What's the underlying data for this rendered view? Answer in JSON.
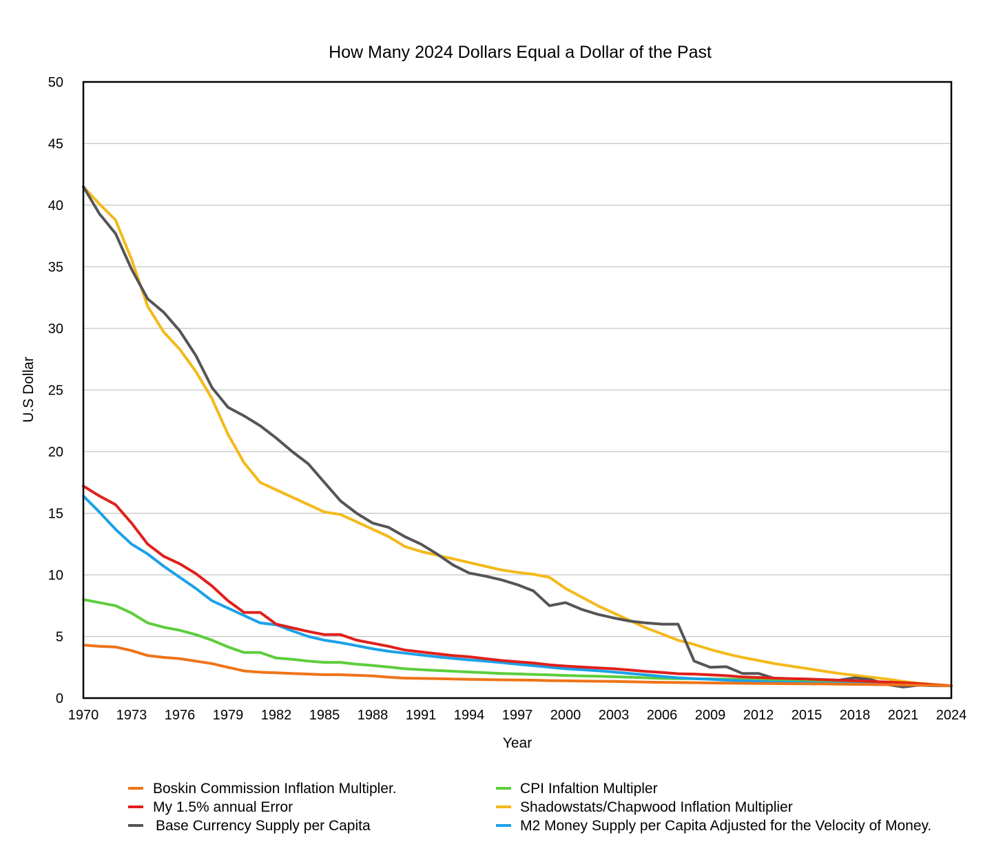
{
  "chart_data": {
    "type": "line",
    "title": "How Many 2024 Dollars Equal a Dollar of the Past",
    "xlabel": "Year",
    "ylabel": "U.S Dollar",
    "xlim": [
      1970,
      2024
    ],
    "ylim": [
      0,
      50
    ],
    "y_ticks": [
      0,
      5,
      10,
      15,
      20,
      25,
      30,
      35,
      40,
      45,
      50
    ],
    "x_tick_labels": [
      "1970",
      "1973",
      "1976",
      "1979",
      "1982",
      "1985",
      "1988",
      "1991",
      "1994",
      "1997",
      "2000",
      "2003",
      "2006",
      "2009",
      "2012",
      "2015",
      "2018",
      "2021",
      "2024"
    ],
    "grid": "horizontal",
    "legend_position": "bottom",
    "x": [
      1970,
      1971,
      1972,
      1973,
      1974,
      1975,
      1976,
      1977,
      1978,
      1979,
      1980,
      1981,
      1982,
      1983,
      1984,
      1985,
      1986,
      1987,
      1988,
      1989,
      1990,
      1991,
      1992,
      1993,
      1994,
      1995,
      1996,
      1997,
      1998,
      1999,
      2000,
      2001,
      2002,
      2003,
      2004,
      2005,
      2006,
      2007,
      2008,
      2009,
      2010,
      2011,
      2012,
      2013,
      2014,
      2015,
      2016,
      2017,
      2018,
      2019,
      2020,
      2021,
      2022,
      2023,
      2024
    ],
    "series": [
      {
        "name": "Boskin Commission Inflation Multipler.",
        "color": "#ee7418",
        "values": [
          4.3,
          4.2,
          4.15,
          3.85,
          3.45,
          3.3,
          3.2,
          3.0,
          2.8,
          2.5,
          2.2,
          2.1,
          2.05,
          2.0,
          1.95,
          1.9,
          1.9,
          1.85,
          1.8,
          1.7,
          1.62,
          1.6,
          1.58,
          1.55,
          1.52,
          1.5,
          1.48,
          1.47,
          1.45,
          1.42,
          1.4,
          1.38,
          1.37,
          1.35,
          1.33,
          1.3,
          1.28,
          1.26,
          1.25,
          1.23,
          1.22,
          1.2,
          1.19,
          1.18,
          1.17,
          1.16,
          1.15,
          1.13,
          1.12,
          1.1,
          1.09,
          1.07,
          1.05,
          1.03,
          1.0
        ]
      },
      {
        "name": "My 1.5% annual Error",
        "color": "#e0201b",
        "values": [
          17.2,
          16.4,
          15.7,
          14.2,
          12.5,
          11.5,
          10.9,
          10.1,
          9.1,
          7.9,
          6.95,
          6.95,
          6.0,
          5.7,
          5.4,
          5.15,
          5.15,
          4.7,
          4.45,
          4.2,
          3.9,
          3.75,
          3.6,
          3.45,
          3.35,
          3.2,
          3.05,
          2.95,
          2.85,
          2.7,
          2.6,
          2.52,
          2.45,
          2.38,
          2.28,
          2.16,
          2.08,
          1.98,
          1.95,
          1.88,
          1.82,
          1.72,
          1.67,
          1.62,
          1.58,
          1.55,
          1.5,
          1.45,
          1.4,
          1.35,
          1.3,
          1.24,
          1.17,
          1.08,
          1.0
        ]
      },
      {
        "name": "Base Currency Supply per Capita",
        "color": "#555555",
        "values": [
          41.5,
          39.3,
          37.7,
          34.8,
          32.4,
          31.3,
          29.8,
          27.8,
          25.2,
          23.6,
          22.9,
          22.1,
          21.1,
          20.0,
          19.0,
          17.5,
          16.0,
          15.0,
          14.2,
          13.85,
          13.1,
          12.5,
          11.7,
          10.8,
          10.15,
          9.9,
          9.6,
          9.2,
          8.7,
          7.5,
          7.75,
          7.2,
          6.8,
          6.5,
          6.25,
          6.1,
          6.0,
          6.0,
          3.0,
          2.5,
          2.55,
          2.0,
          2.0,
          1.6,
          1.55,
          1.5,
          1.45,
          1.45,
          1.65,
          1.5,
          1.1,
          0.9,
          1.05,
          1.0,
          1.0
        ]
      },
      {
        "name": "CPI Infaltion Multipler",
        "color": "#5dcd3c",
        "values": [
          8.0,
          7.75,
          7.5,
          6.9,
          6.1,
          5.75,
          5.5,
          5.15,
          4.7,
          4.15,
          3.7,
          3.7,
          3.25,
          3.15,
          3.0,
          2.9,
          2.9,
          2.75,
          2.65,
          2.52,
          2.38,
          2.3,
          2.24,
          2.18,
          2.12,
          2.06,
          2.0,
          1.96,
          1.92,
          1.88,
          1.84,
          1.8,
          1.77,
          1.74,
          1.7,
          1.65,
          1.6,
          1.58,
          1.57,
          1.56,
          1.54,
          1.5,
          1.45,
          1.42,
          1.4,
          1.38,
          1.37,
          1.34,
          1.3,
          1.26,
          1.25,
          1.18,
          1.07,
          1.03,
          1.0
        ]
      },
      {
        "name": "Shadowstats/Chapwood Inflation Multiplier",
        "color": "#f4b91a",
        "values": [
          41.5,
          40.1,
          38.8,
          35.6,
          31.8,
          29.7,
          28.3,
          26.5,
          24.3,
          21.4,
          19.1,
          17.5,
          16.9,
          16.3,
          15.7,
          15.1,
          14.9,
          14.3,
          13.7,
          13.1,
          12.3,
          11.9,
          11.6,
          11.3,
          11.0,
          10.7,
          10.4,
          10.2,
          10.05,
          9.8,
          8.9,
          8.2,
          7.5,
          6.9,
          6.3,
          5.7,
          5.2,
          4.7,
          4.35,
          3.95,
          3.6,
          3.3,
          3.05,
          2.8,
          2.6,
          2.4,
          2.2,
          2.0,
          1.85,
          1.7,
          1.55,
          1.35,
          1.2,
          1.1,
          1.0
        ]
      },
      {
        "name": "M2 Money Supply per Capita Adjusted for the Velocity of Money.",
        "color": "#1ba1e8",
        "values": [
          16.4,
          15.1,
          13.7,
          12.5,
          11.7,
          10.7,
          9.8,
          8.9,
          7.9,
          7.3,
          6.7,
          6.1,
          5.95,
          5.45,
          5.0,
          4.7,
          4.5,
          4.25,
          4.0,
          3.8,
          3.65,
          3.5,
          3.35,
          3.22,
          3.1,
          3.0,
          2.88,
          2.75,
          2.63,
          2.5,
          2.38,
          2.3,
          2.22,
          2.12,
          2.0,
          1.88,
          1.76,
          1.65,
          1.58,
          1.52,
          1.45,
          1.4,
          1.35,
          1.3,
          1.28,
          1.25,
          1.22,
          1.2,
          1.17,
          1.14,
          1.1,
          1.08,
          1.04,
          1.02,
          1.0
        ]
      }
    ]
  }
}
